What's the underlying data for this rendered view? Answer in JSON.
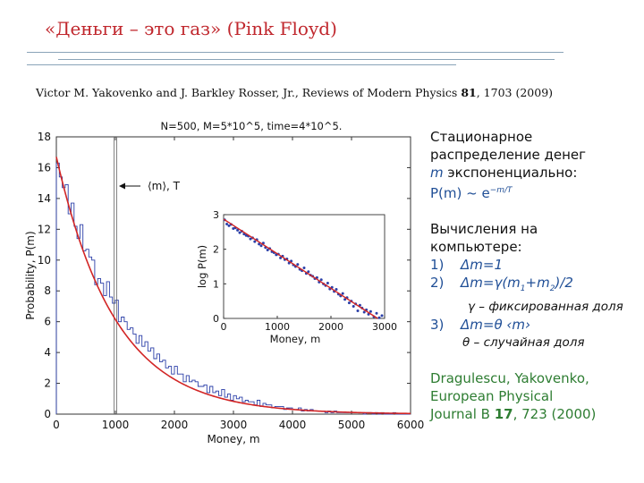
{
  "slide": {
    "title": "«Деньги – это газ» (Pink Floyd)",
    "citation": {
      "authors": "Victor M. Yakovenko and J. Barkley Rosser, Jr., Reviews of Modern Physics ",
      "volume": "81",
      "pages": ", 1703 (2009)"
    },
    "side": {
      "l1": "Стационарное",
      "l2": "распределение денег",
      "l3_var": "m",
      "l3_rest": " экспоненциально:",
      "formula": "P(m) ~ e",
      "formula_exp": "−m/T",
      "l4": "Вычисления на",
      "l5": "компьютере:",
      "i1_num": "1)",
      "i1": "Δm=1",
      "i2_num": "2)",
      "i2_a": "Δm=γ(m",
      "i2_s1": "1",
      "i2_b": "+m",
      "i2_s2": "2",
      "i2_c": ")/2",
      "i2_note": "γ – фиксированная доля",
      "i3_num": "3)",
      "i3": "Δm=θ ‹m›",
      "i3_note": "θ – случайная доля",
      "ref1": "Dragulescu, Yakovenko,",
      "ref2": "European Physical",
      "ref3a": "Journal B ",
      "ref3b": "17",
      "ref3c": ", 723 (2000)"
    }
  },
  "chart_data": {
    "type": "line",
    "title": "N=500, M=5*10^5, time=4*10^5.",
    "xlabel": "Money, m",
    "ylabel": "Probability, P(m)",
    "xlim": [
      0,
      6000
    ],
    "ylim": [
      0,
      18
    ],
    "xticks": [
      "0",
      "1000",
      "2000",
      "3000",
      "4000",
      "5000",
      "6000"
    ],
    "yticks": [
      "0",
      "2",
      "4",
      "6",
      "8",
      "10",
      "12",
      "14",
      "16",
      "18"
    ],
    "annotation": "⟨m⟩, T",
    "annotation_x": 1000,
    "series": [
      {
        "kind": "histogram",
        "color": "#2b3fa8",
        "bin_width": 50,
        "values": [
          16.3,
          15.4,
          14.7,
          14.9,
          13.0,
          13.7,
          12.2,
          11.4,
          12.3,
          10.6,
          10.7,
          10.2,
          10.0,
          8.4,
          8.8,
          8.5,
          7.7,
          8.6,
          7.6,
          7.2,
          7.4,
          6.0,
          6.3,
          6.0,
          5.5,
          5.6,
          5.2,
          4.6,
          5.1,
          4.4,
          4.7,
          4.1,
          4.3,
          3.6,
          3.9,
          3.4,
          3.5,
          3.0,
          3.1,
          2.6,
          3.1,
          2.6,
          2.6,
          2.1,
          2.5,
          2.1,
          2.2,
          2.1,
          1.8,
          1.8,
          1.9,
          1.4,
          1.8,
          1.4,
          1.5,
          1.2,
          1.6,
          1.1,
          1.3,
          0.9,
          1.2,
          1.0,
          1.1,
          0.8,
          0.9,
          0.8,
          0.8,
          0.6,
          0.9,
          0.5,
          0.7,
          0.6,
          0.6,
          0.4,
          0.5,
          0.5,
          0.5,
          0.3,
          0.4,
          0.4,
          0.3,
          0.3,
          0.4,
          0.2,
          0.3,
          0.2,
          0.3,
          0.2,
          0.2,
          0.2,
          0.2,
          0.1,
          0.2,
          0.1,
          0.2,
          0.1,
          0.1,
          0.1,
          0.1,
          0.1,
          0.1,
          0.1,
          0.1,
          0.1,
          0.0,
          0.1,
          0.1,
          0.0,
          0.1,
          0.0,
          0.1,
          0.0,
          0.0,
          0.0,
          0.1,
          0.0,
          0.0,
          0.0,
          0.0,
          0.0
        ]
      },
      {
        "kind": "fit",
        "color": "#d22525",
        "formula": "P(m) = 16.7·exp(−m/1000)"
      }
    ],
    "inset": {
      "type": "scatter",
      "xlabel": "Money, m",
      "ylabel": "log P(m)",
      "xlim": [
        0,
        3000
      ],
      "ylim": [
        0,
        3
      ],
      "xticks": [
        "0",
        "1000",
        "2000",
        "3000"
      ],
      "yticks": [
        "0",
        "1",
        "2",
        "3"
      ],
      "points": [
        [
          20,
          2.85
        ],
        [
          60,
          2.73
        ],
        [
          100,
          2.68
        ],
        [
          140,
          2.72
        ],
        [
          180,
          2.6
        ],
        [
          220,
          2.62
        ],
        [
          260,
          2.55
        ],
        [
          300,
          2.48
        ],
        [
          340,
          2.52
        ],
        [
          380,
          2.44
        ],
        [
          420,
          2.4
        ],
        [
          460,
          2.38
        ],
        [
          500,
          2.3
        ],
        [
          540,
          2.33
        ],
        [
          580,
          2.22
        ],
        [
          620,
          2.28
        ],
        [
          660,
          2.15
        ],
        [
          700,
          2.1
        ],
        [
          740,
          2.18
        ],
        [
          780,
          2.05
        ],
        [
          820,
          1.98
        ],
        [
          860,
          2.02
        ],
        [
          900,
          1.93
        ],
        [
          940,
          1.9
        ],
        [
          980,
          1.84
        ],
        [
          1020,
          1.86
        ],
        [
          1060,
          1.75
        ],
        [
          1100,
          1.8
        ],
        [
          1140,
          1.7
        ],
        [
          1180,
          1.72
        ],
        [
          1220,
          1.6
        ],
        [
          1260,
          1.66
        ],
        [
          1300,
          1.55
        ],
        [
          1340,
          1.5
        ],
        [
          1380,
          1.56
        ],
        [
          1420,
          1.42
        ],
        [
          1460,
          1.38
        ],
        [
          1500,
          1.46
        ],
        [
          1540,
          1.3
        ],
        [
          1580,
          1.35
        ],
        [
          1620,
          1.25
        ],
        [
          1660,
          1.22
        ],
        [
          1700,
          1.15
        ],
        [
          1740,
          1.18
        ],
        [
          1780,
          1.05
        ],
        [
          1820,
          1.12
        ],
        [
          1860,
          1.0
        ],
        [
          1900,
          0.95
        ],
        [
          1940,
          1.02
        ],
        [
          1980,
          0.85
        ],
        [
          2020,
          0.9
        ],
        [
          2060,
          0.78
        ],
        [
          2100,
          0.84
        ],
        [
          2140,
          0.7
        ],
        [
          2180,
          0.65
        ],
        [
          2220,
          0.72
        ],
        [
          2260,
          0.55
        ],
        [
          2300,
          0.6
        ],
        [
          2340,
          0.45
        ],
        [
          2380,
          0.5
        ],
        [
          2420,
          0.35
        ],
        [
          2460,
          0.42
        ],
        [
          2500,
          0.22
        ],
        [
          2540,
          0.38
        ],
        [
          2580,
          0.3
        ],
        [
          2620,
          0.18
        ],
        [
          2660,
          0.25
        ],
        [
          2700,
          0.12
        ],
        [
          2740,
          0.2
        ],
        [
          2800,
          0.05
        ],
        [
          2850,
          0.15
        ],
        [
          2900,
          0.02
        ],
        [
          2950,
          0.08
        ]
      ],
      "fit": {
        "intercept": 2.87,
        "slope": -0.001
      }
    }
  }
}
